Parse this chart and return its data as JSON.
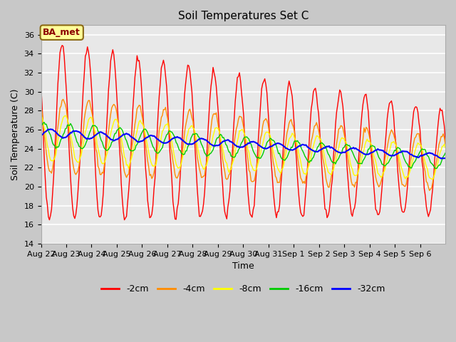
{
  "title": "Soil Temperatures Set C",
  "xlabel": "Time",
  "ylabel": "Soil Temperature (C)",
  "ylim": [
    14,
    37
  ],
  "yticks": [
    14,
    16,
    18,
    20,
    22,
    24,
    26,
    28,
    30,
    32,
    34,
    36
  ],
  "date_labels": [
    "Aug 22",
    "Aug 23",
    "Aug 24",
    "Aug 25",
    "Aug 26",
    "Aug 27",
    "Aug 28",
    "Aug 29",
    "Aug 30",
    "Aug 31",
    "Sep 1",
    "Sep 2",
    "Sep 3",
    "Sep 4",
    "Sep 5",
    "Sep 6"
  ],
  "series": [
    {
      "label": "-2cm",
      "color": "#ff0000",
      "linewidth": 1.0
    },
    {
      "label": "-4cm",
      "color": "#ff8c00",
      "linewidth": 1.0
    },
    {
      "label": "-8cm",
      "color": "#ffff00",
      "linewidth": 1.0
    },
    {
      "label": "-16cm",
      "color": "#00cc00",
      "linewidth": 1.0
    },
    {
      "label": "-32cm",
      "color": "#0000ff",
      "linewidth": 1.5
    }
  ],
  "annotation_text": "BA_met",
  "fig_bg_color": "#c8c8c8",
  "plot_bg_color": "#e8e8e8",
  "grid_color": "#ffffff",
  "title_fontsize": 11,
  "axis_fontsize": 9,
  "tick_fontsize": 8,
  "legend_fontsize": 9
}
